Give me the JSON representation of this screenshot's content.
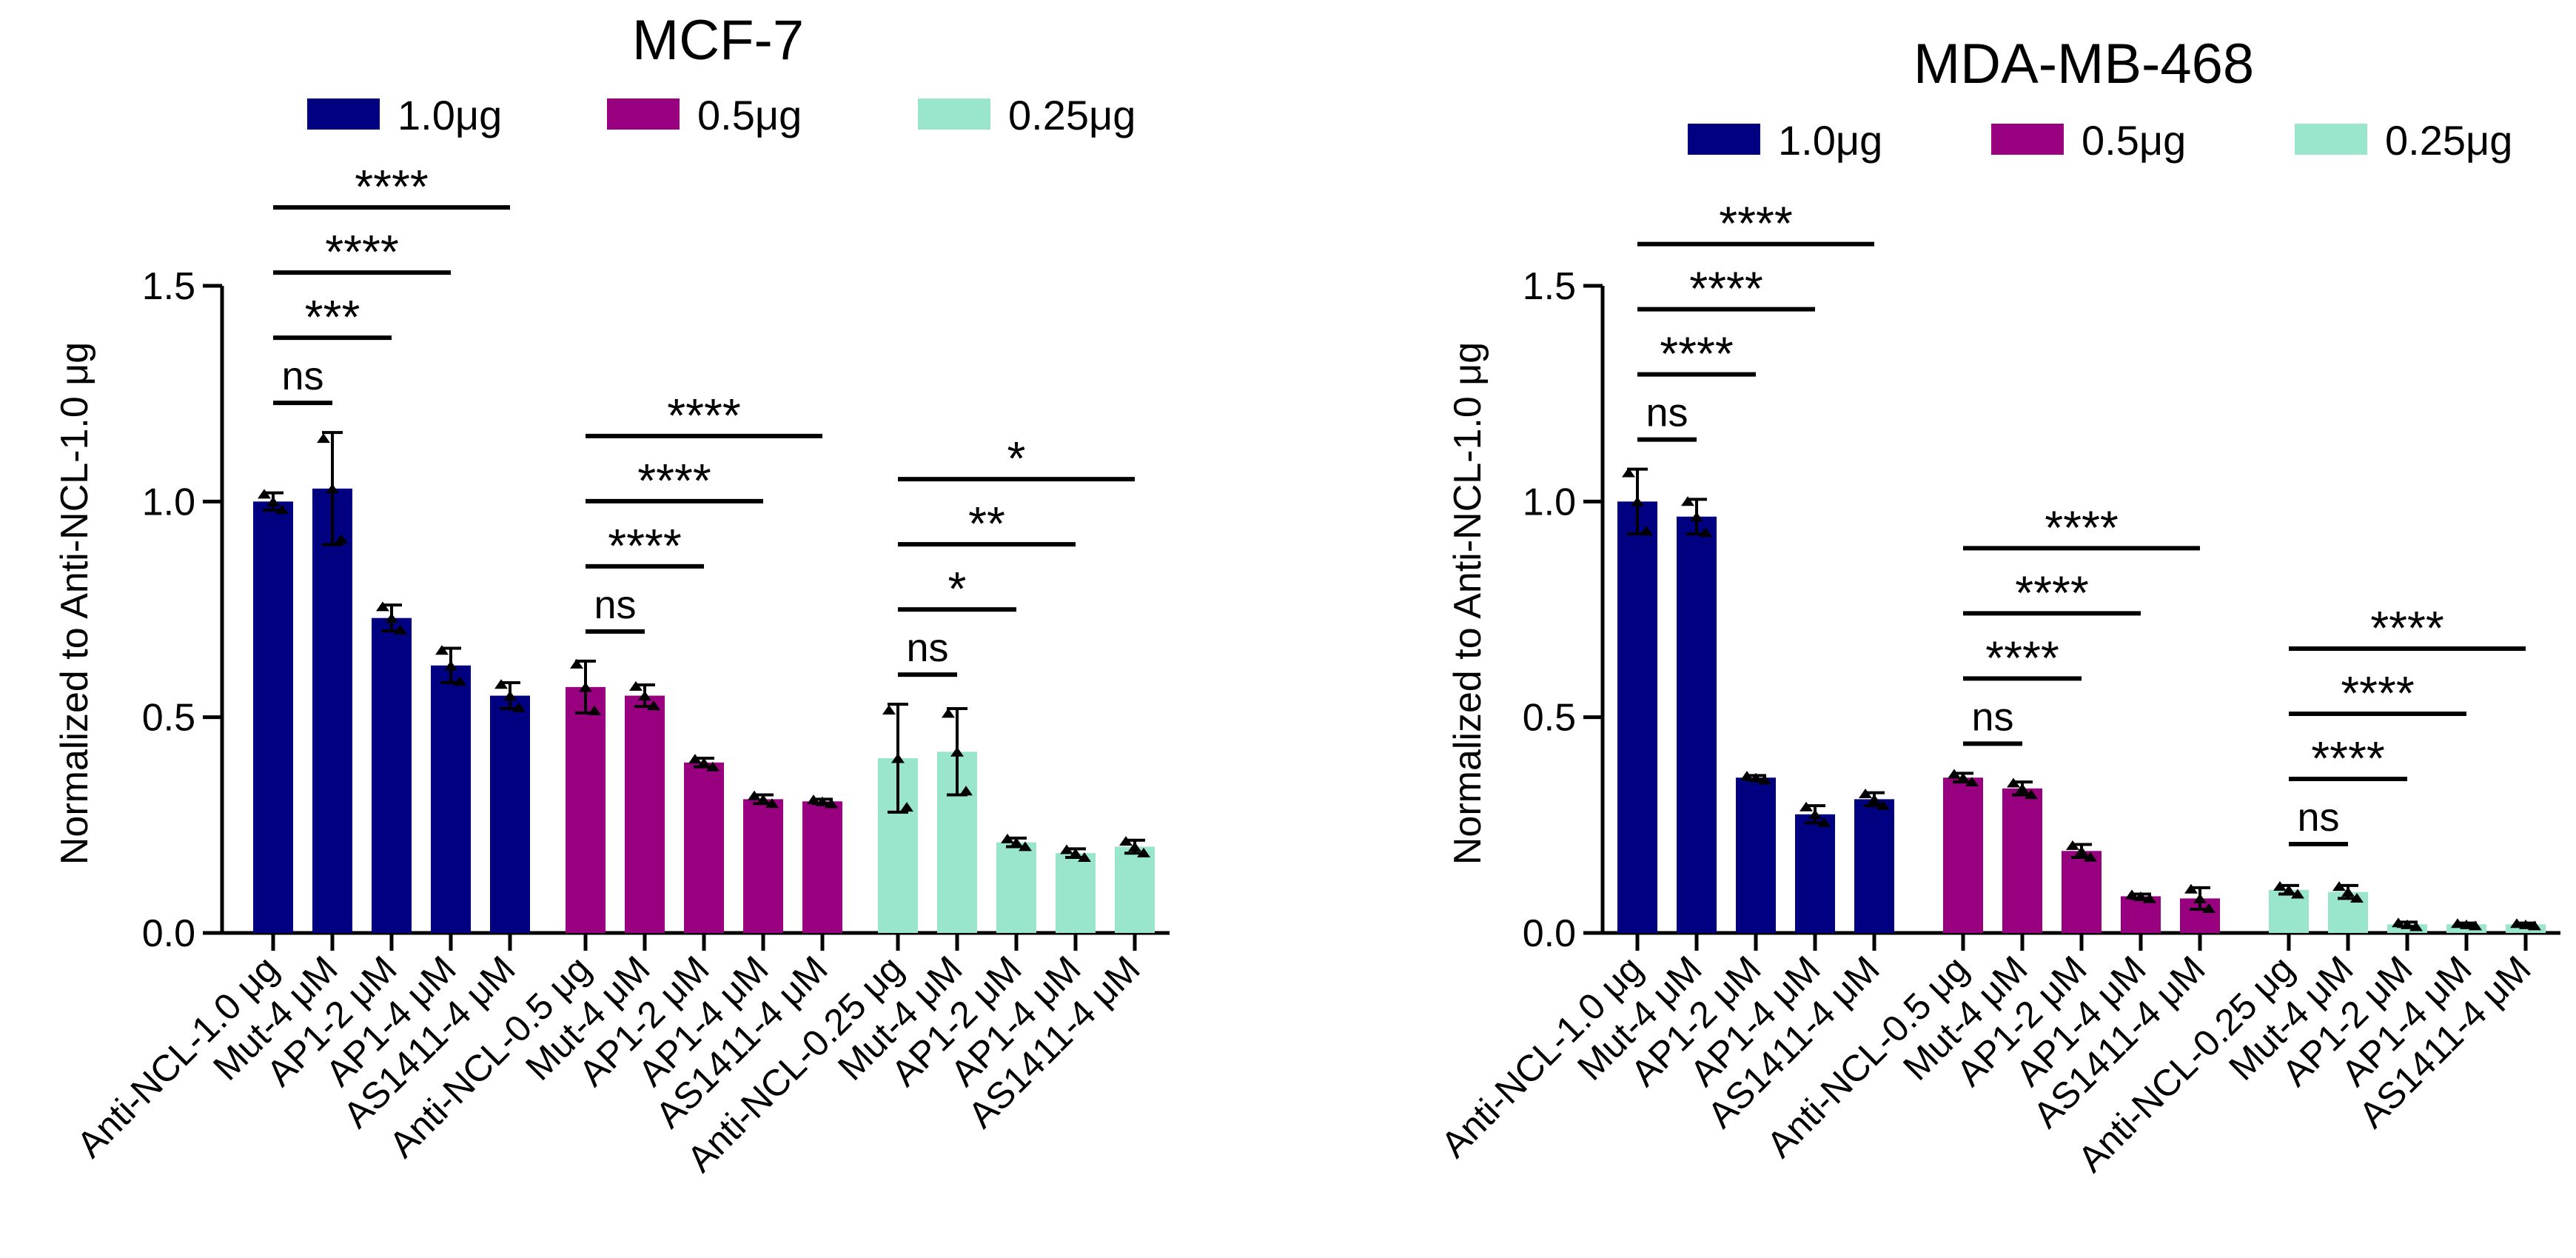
{
  "chart_data": [
    {
      "type": "bar",
      "title": "MCF-7",
      "ylabel": "Normalized to Anti-NCL-1.0 μg",
      "xlabel": "",
      "ylim": [
        0,
        1.5
      ],
      "yticks": [
        "0.0",
        "0.5",
        "1.0",
        "1.5"
      ],
      "ytick_values": [
        0,
        0.5,
        1.0,
        1.5
      ],
      "legend": [
        {
          "label": "1.0μg",
          "color": "#000080"
        },
        {
          "label": "0.5μg",
          "color": "#990080"
        },
        {
          "label": "0.25μg",
          "color": "#99e6cc"
        }
      ],
      "groups": [
        {
          "name": "1.0μg",
          "color": "#000080",
          "categories": [
            "Anti-NCL-1.0 μg",
            "Mut-4 μM",
            "AP1-2 μM",
            "AP1-4 μM",
            "AS1411-4 μM"
          ],
          "values": [
            1.0,
            1.03,
            0.73,
            0.62,
            0.55
          ],
          "errors": [
            0.02,
            0.13,
            0.03,
            0.04,
            0.03
          ],
          "comparisons": [
            {
              "label": "ns",
              "to": 1
            },
            {
              "label": "***",
              "to": 2
            },
            {
              "label": "****",
              "to": 3
            },
            {
              "label": "****",
              "to": 4
            }
          ]
        },
        {
          "name": "0.5μg",
          "color": "#990080",
          "categories": [
            "Anti-NCL-0.5 μg",
            "Mut-4 μM",
            "AP1-2 μM",
            "AP1-4 μM",
            "AS1411-4 μM"
          ],
          "values": [
            0.57,
            0.55,
            0.395,
            0.31,
            0.305
          ],
          "errors": [
            0.06,
            0.025,
            0.01,
            0.01,
            0.005
          ],
          "comparisons": [
            {
              "label": "ns",
              "to": 1
            },
            {
              "label": "****",
              "to": 2
            },
            {
              "label": "****",
              "to": 3
            },
            {
              "label": "****",
              "to": 4
            }
          ]
        },
        {
          "name": "0.25μg",
          "color": "#99e6cc",
          "categories": [
            "Anti-NCL-0.25 μg",
            "Mut-4 μM",
            "AP1-2 μM",
            "AP1-4 μM",
            "AS1411-4 μM"
          ],
          "values": [
            0.405,
            0.42,
            0.21,
            0.185,
            0.2
          ],
          "errors": [
            0.125,
            0.1,
            0.01,
            0.01,
            0.015
          ],
          "comparisons": [
            {
              "label": "ns",
              "to": 1
            },
            {
              "label": "*",
              "to": 2
            },
            {
              "label": "**",
              "to": 3
            },
            {
              "label": "*",
              "to": 4
            }
          ]
        }
      ]
    },
    {
      "type": "bar",
      "title": "MDA-MB-468",
      "ylabel": "Normalized to Anti-NCL-1.0 μg",
      "xlabel": "",
      "ylim": [
        0,
        1.5
      ],
      "yticks": [
        "0.0",
        "0.5",
        "1.0",
        "1.5"
      ],
      "ytick_values": [
        0,
        0.5,
        1.0,
        1.5
      ],
      "legend": [
        {
          "label": "1.0μg",
          "color": "#000080"
        },
        {
          "label": "0.5μg",
          "color": "#990080"
        },
        {
          "label": "0.25μg",
          "color": "#99e6cc"
        }
      ],
      "groups": [
        {
          "name": "1.0μg",
          "color": "#000080",
          "categories": [
            "Anti-NCL-1.0 μg",
            "Mut-4 μM",
            "AP1-2 μM",
            "AP1-4 μM",
            "AS1411-4 μM"
          ],
          "values": [
            1.0,
            0.965,
            0.36,
            0.275,
            0.31
          ],
          "errors": [
            0.075,
            0.04,
            0.005,
            0.02,
            0.015
          ],
          "comparisons": [
            {
              "label": "ns",
              "to": 1
            },
            {
              "label": "****",
              "to": 2
            },
            {
              "label": "****",
              "to": 3
            },
            {
              "label": "****",
              "to": 4
            }
          ]
        },
        {
          "name": "0.5μg",
          "color": "#990080",
          "categories": [
            "Anti-NCL-0.5 μg",
            "Mut-4 μM",
            "AP1-2 μM",
            "AP1-4 μM",
            "AS1411-4 μM"
          ],
          "values": [
            0.36,
            0.335,
            0.19,
            0.085,
            0.08
          ],
          "errors": [
            0.01,
            0.015,
            0.015,
            0.005,
            0.025
          ],
          "comparisons": [
            {
              "label": "ns",
              "to": 1
            },
            {
              "label": "****",
              "to": 2
            },
            {
              "label": "****",
              "to": 3
            },
            {
              "label": "****",
              "to": 4
            }
          ]
        },
        {
          "name": "0.25μg",
          "color": "#99e6cc",
          "categories": [
            "Anti-NCL-0.25 μg",
            "Mut-4 μM",
            "AP1-2 μM",
            "AP1-4 μM",
            "AS1411-4 μM"
          ],
          "values": [
            0.1,
            0.095,
            0.02,
            0.02,
            0.02
          ],
          "errors": [
            0.01,
            0.015,
            0.005,
            0.003,
            0.003
          ],
          "comparisons": [
            {
              "label": "ns",
              "to": 1
            },
            {
              "label": "****",
              "to": 2
            },
            {
              "label": "****",
              "to": 3
            },
            {
              "label": "****",
              "to": 4
            }
          ]
        }
      ]
    }
  ]
}
